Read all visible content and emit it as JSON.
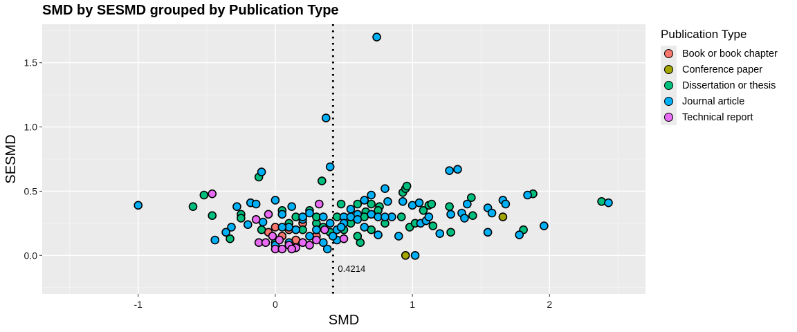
{
  "chart_data": {
    "type": "scatter",
    "title": "SMD by SESMD grouped by Publication Type",
    "xlabel": "SMD",
    "ylabel": "SESMD",
    "xlim": [
      -1.7,
      2.7
    ],
    "ylim": [
      -0.3,
      1.8
    ],
    "x_ticks": [
      -1,
      0,
      1,
      2
    ],
    "x_tick_labels": [
      "-1",
      "0",
      "1",
      "2"
    ],
    "y_ticks": [
      0.0,
      0.5,
      1.0,
      1.5
    ],
    "y_tick_labels": [
      "0.0",
      "0.5",
      "1.0",
      "1.5"
    ],
    "reference_line": {
      "x": 0.4214,
      "label": "0.4214",
      "style": "dotted"
    },
    "grid": true,
    "legend": {
      "title": "Publication Type",
      "placement": "right"
    },
    "series": [
      {
        "name": "Book or book chapter",
        "color": "#F8766D",
        "points": [
          [
            0.0,
            0.22
          ],
          [
            0.05,
            0.15
          ],
          [
            0.1,
            0.2
          ],
          [
            0.15,
            0.12
          ],
          [
            0.2,
            0.25
          ],
          [
            -0.05,
            0.18
          ],
          [
            0.3,
            0.15
          ]
        ]
      },
      {
        "name": "Conference paper",
        "color": "#A3A500",
        "points": [
          [
            0.95,
            0.0
          ],
          [
            1.66,
            0.3
          ]
        ]
      },
      {
        "name": "Dissertation or thesis",
        "color": "#00BF7D",
        "points": [
          [
            -0.6,
            0.38
          ],
          [
            -0.52,
            0.47
          ],
          [
            -0.46,
            0.31
          ],
          [
            -0.33,
            0.13
          ],
          [
            -0.25,
            0.32
          ],
          [
            -0.25,
            0.29
          ],
          [
            -0.12,
            0.61
          ],
          [
            0.34,
            0.58
          ],
          [
            0.48,
            0.4
          ],
          [
            0.6,
            0.4
          ],
          [
            0.62,
            0.1
          ],
          [
            0.66,
            0.34
          ],
          [
            0.7,
            0.4
          ],
          [
            0.76,
            0.38
          ],
          [
            0.92,
            0.3
          ],
          [
            0.93,
            0.49
          ],
          [
            0.95,
            0.52
          ],
          [
            0.96,
            0.54
          ],
          [
            0.98,
            0.22
          ],
          [
            1.02,
            0.25
          ],
          [
            1.08,
            0.35
          ],
          [
            1.12,
            0.39
          ],
          [
            1.14,
            0.4
          ],
          [
            1.15,
            0.23
          ],
          [
            1.27,
            0.38
          ],
          [
            1.28,
            0.18
          ],
          [
            1.43,
            0.45
          ],
          [
            1.44,
            0.31
          ],
          [
            1.81,
            0.2
          ],
          [
            1.88,
            0.48
          ],
          [
            2.38,
            0.42
          ],
          [
            -0.1,
            0.2
          ],
          [
            0.05,
            0.35
          ],
          [
            0.15,
            0.3
          ],
          [
            0.2,
            0.2
          ],
          [
            0.25,
            0.35
          ],
          [
            0.3,
            0.25
          ],
          [
            0.35,
            0.22
          ],
          [
            0.4,
            0.18
          ],
          [
            0.45,
            0.3
          ],
          [
            0.5,
            0.2
          ],
          [
            0.55,
            0.25
          ],
          [
            0.6,
            0.15
          ],
          [
            0.65,
            0.3
          ],
          [
            0.7,
            0.2
          ],
          [
            0.75,
            0.35
          ],
          [
            0.8,
            0.25
          ],
          [
            0.0,
            0.1
          ],
          [
            0.1,
            0.25
          ],
          [
            0.2,
            0.1
          ],
          [
            0.3,
            0.3
          ]
        ]
      },
      {
        "name": "Journal article",
        "color": "#00B0F6",
        "points": [
          [
            -1.0,
            0.39
          ],
          [
            -0.44,
            0.12
          ],
          [
            -0.36,
            0.18
          ],
          [
            -0.32,
            0.22
          ],
          [
            -0.28,
            0.38
          ],
          [
            -0.2,
            0.24
          ],
          [
            -0.18,
            0.41
          ],
          [
            -0.14,
            0.4
          ],
          [
            -0.1,
            0.65
          ],
          [
            -0.09,
            0.26
          ],
          [
            0.0,
            0.43
          ],
          [
            0.05,
            0.32
          ],
          [
            0.1,
            0.22
          ],
          [
            0.12,
            0.38
          ],
          [
            0.2,
            0.28
          ],
          [
            0.25,
            0.33
          ],
          [
            0.35,
            0.1
          ],
          [
            0.37,
            1.07
          ],
          [
            0.4,
            0.69
          ],
          [
            0.45,
            0.12
          ],
          [
            0.5,
            0.3
          ],
          [
            0.55,
            0.36
          ],
          [
            0.6,
            0.32
          ],
          [
            0.65,
            0.43
          ],
          [
            0.7,
            0.47
          ],
          [
            0.74,
            1.7
          ],
          [
            0.75,
            0.16
          ],
          [
            0.8,
            0.52
          ],
          [
            0.82,
            0.42
          ],
          [
            0.85,
            0.3
          ],
          [
            0.9,
            0.15
          ],
          [
            0.93,
            0.42
          ],
          [
            1.0,
            0.39
          ],
          [
            1.02,
            0.0
          ],
          [
            1.05,
            0.41
          ],
          [
            1.06,
            0.25
          ],
          [
            1.1,
            0.27
          ],
          [
            1.12,
            0.3
          ],
          [
            1.2,
            0.17
          ],
          [
            1.27,
            0.66
          ],
          [
            1.28,
            0.32
          ],
          [
            1.33,
            0.67
          ],
          [
            1.36,
            0.33
          ],
          [
            1.38,
            0.29
          ],
          [
            1.4,
            0.4
          ],
          [
            1.55,
            0.37
          ],
          [
            1.55,
            0.18
          ],
          [
            1.58,
            0.33
          ],
          [
            1.66,
            0.43
          ],
          [
            1.68,
            0.4
          ],
          [
            1.78,
            0.16
          ],
          [
            1.84,
            0.47
          ],
          [
            1.96,
            0.23
          ],
          [
            2.43,
            0.41
          ],
          [
            0.1,
            0.1
          ],
          [
            0.15,
            0.2
          ],
          [
            0.2,
            0.3
          ],
          [
            0.25,
            0.15
          ],
          [
            0.3,
            0.2
          ],
          [
            0.35,
            0.3
          ],
          [
            0.4,
            0.25
          ],
          [
            0.45,
            0.2
          ],
          [
            0.5,
            0.25
          ],
          [
            0.55,
            0.3
          ],
          [
            0.6,
            0.28
          ],
          [
            0.65,
            0.22
          ],
          [
            0.7,
            0.32
          ],
          [
            0.75,
            0.3
          ],
          [
            0.8,
            0.3
          ],
          [
            0.05,
            0.22
          ],
          [
            0.0,
            0.08
          ],
          [
            0.38,
            0.05
          ],
          [
            0.42,
            0.15
          ],
          [
            0.48,
            0.22
          ]
        ]
      },
      {
        "name": "Technical report",
        "color": "#E76BF3",
        "points": [
          [
            -0.46,
            0.48
          ],
          [
            -0.14,
            0.28
          ],
          [
            -0.12,
            0.1
          ],
          [
            -0.07,
            0.1
          ],
          [
            -0.05,
            0.32
          ],
          [
            0.0,
            0.05
          ],
          [
            0.05,
            0.05
          ],
          [
            0.1,
            0.08
          ],
          [
            0.15,
            0.06
          ],
          [
            0.2,
            0.1
          ],
          [
            0.25,
            0.08
          ],
          [
            0.3,
            0.12
          ],
          [
            0.32,
            0.4
          ],
          [
            0.36,
            0.2
          ],
          [
            0.5,
            0.13
          ],
          [
            -0.02,
            0.15
          ],
          [
            0.03,
            0.12
          ],
          [
            0.12,
            0.05
          ]
        ]
      }
    ]
  }
}
